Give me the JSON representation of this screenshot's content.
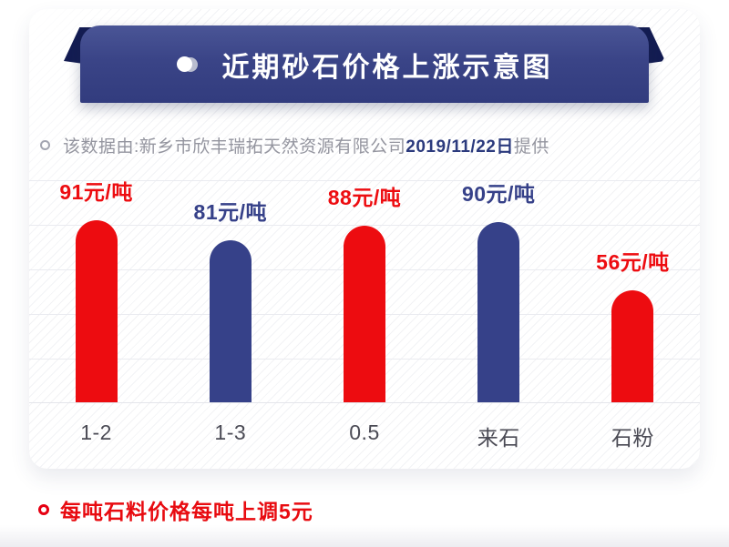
{
  "header": {
    "title": "近期砂石价格上涨示意图"
  },
  "source_note": {
    "prefix": "该数据由:新乡市欣丰瑞拓天然资源有限公司",
    "date": "2019/11/22日",
    "suffix": "提供"
  },
  "chart_data": {
    "type": "bar",
    "title": "近期砂石价格上涨示意图",
    "categories": [
      "1-2",
      "1-3",
      "0.5",
      "来石",
      "石粉"
    ],
    "values": [
      91,
      81,
      88,
      90,
      56
    ],
    "unit": "元/吨",
    "bar_colors": [
      "#ed0c10",
      "#364189",
      "#ed0c10",
      "#364189",
      "#ed0c10"
    ],
    "grid": true,
    "legend": false,
    "ylim": [
      0,
      110
    ]
  },
  "footnote": {
    "text": "每吨石料价格每吨上调5元"
  },
  "colors": {
    "accent_red": "#ed0c10",
    "accent_navy": "#364189",
    "banner_top": "#4a5596",
    "banner_bottom": "#323c7e",
    "ribbon_fold": "#131c52",
    "note_gray": "#94959f",
    "date_blue": "#2b3a7d",
    "gridline": "#eaebf0"
  }
}
